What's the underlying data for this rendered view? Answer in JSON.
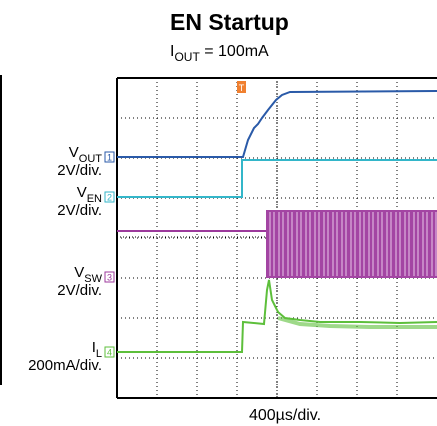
{
  "header": {
    "title": "EN Startup",
    "condition": {
      "symbol": "I",
      "sub": "OUT",
      "rest": " = 100mA"
    }
  },
  "channels": [
    {
      "symbol": "V",
      "sub": "OUT",
      "scale": "2V/div.",
      "marker": "1"
    },
    {
      "symbol": "V",
      "sub": "EN",
      "scale": "2V/div.",
      "marker": "2"
    },
    {
      "symbol": "V",
      "sub": "SW",
      "scale": "2V/div.",
      "marker": "3"
    },
    {
      "symbol": "I",
      "sub": "L",
      "scale": "200mA/div.",
      "marker": "4"
    }
  ],
  "trigger": "T",
  "footer": {
    "timebase": "400µs/div."
  }
}
